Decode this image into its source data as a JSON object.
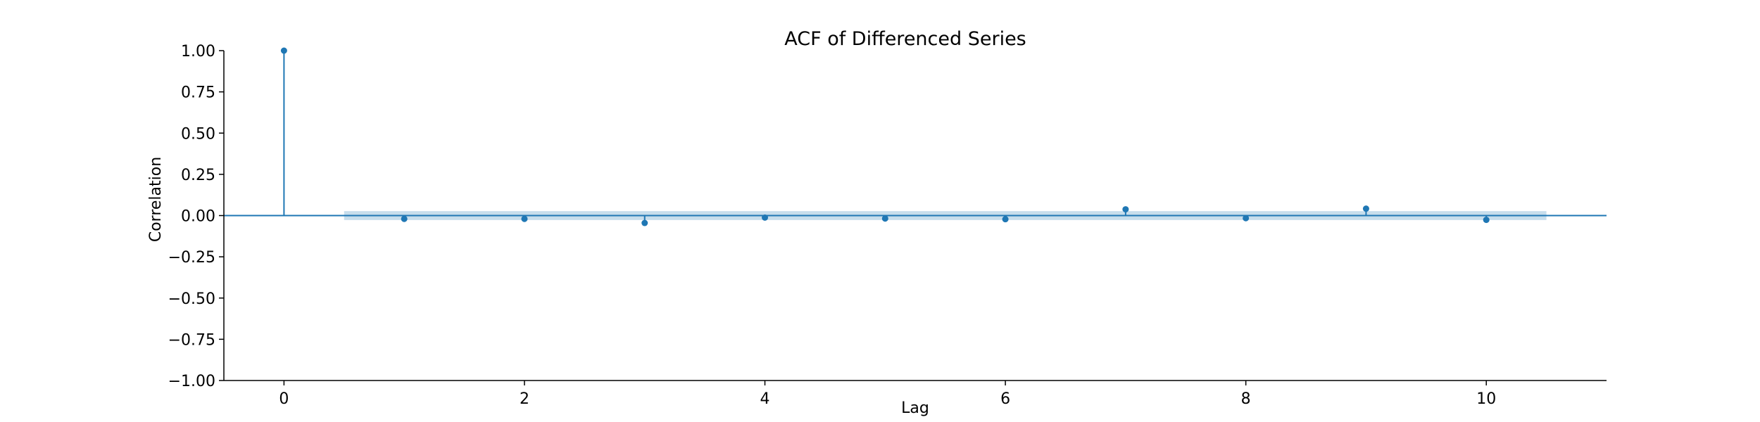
{
  "chart_data": {
    "type": "stem",
    "title": "ACF of Differenced Series",
    "xlabel": "Lag",
    "ylabel": "Correlation",
    "xlim": [
      -0.5,
      11.0
    ],
    "ylim": [
      -1.0,
      1.0
    ],
    "x_ticks": [
      0,
      2,
      4,
      6,
      8,
      10
    ],
    "y_ticks": [
      1.0,
      0.75,
      0.5,
      0.25,
      0.0,
      -0.25,
      -0.5,
      -0.75,
      -1.0
    ],
    "y_tick_labels": [
      "1.00",
      "0.75",
      "0.50",
      "0.25",
      "0.00",
      "−0.25",
      "−0.50",
      "−0.75",
      "−1.00"
    ],
    "lags": [
      0,
      1,
      2,
      3,
      4,
      5,
      6,
      7,
      8,
      9,
      10
    ],
    "values": [
      1.0,
      -0.02,
      -0.02,
      -0.045,
      -0.012,
      -0.018,
      -0.022,
      0.038,
      -0.016,
      0.042,
      -0.026
    ],
    "confidence_band": {
      "x_range": [
        0.5,
        10.5
      ],
      "upper": 0.027,
      "lower": -0.027
    },
    "grid": false,
    "colors": {
      "stem": "#1f77b4",
      "band": "#1f77b4",
      "zero_line": "#1f77b4",
      "axis": "#000000"
    }
  }
}
